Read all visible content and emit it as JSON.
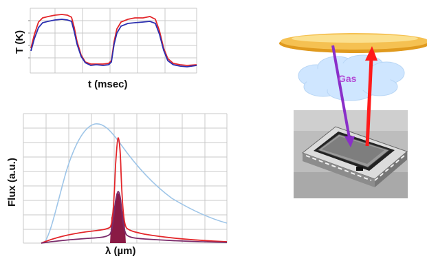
{
  "top_chart": {
    "ylabel": "T (K)",
    "xlabel": "t (msec)"
  },
  "bottom_chart": {
    "ylabel": "Flux (a.u.)",
    "xlabel": "λ (µm)"
  },
  "diagram": {
    "gas_label": "Gas"
  },
  "colors": {
    "red": "#e3262a",
    "blue": "#2b2fb0",
    "light_blue": "#9ec5e8",
    "maroon": "#8a1a45",
    "purple_arrow": "#8a2fc9",
    "red_arrow": "#ff1a1a",
    "disc": "#f2b43c",
    "cloud": "#cfe6ff"
  },
  "chart_data": [
    {
      "type": "line",
      "title": "",
      "xlabel": "t (msec)",
      "ylabel": "T (K)",
      "grid": true,
      "series": [
        {
          "color": "#e3262a",
          "x": [
            0,
            0.5,
            1.0,
            1.4,
            1.9,
            2.2,
            2.7,
            3.0,
            3.2,
            3.7,
            4.1,
            4.5,
            5.0,
            5.5,
            6.0,
            6.6,
            7.0
          ],
          "y": [
            0.35,
            0.9,
            1.0,
            1.0,
            0.98,
            0.6,
            0.1,
            0.0,
            0.0,
            0.05,
            0.75,
            0.95,
            1.0,
            1.0,
            0.55,
            0.05,
            0.0
          ]
        },
        {
          "color": "#2b2fb0",
          "x": [
            0,
            0.5,
            1.0,
            1.4,
            1.9,
            2.2,
            2.7,
            3.0,
            3.2,
            3.7,
            4.1,
            4.5,
            5.0,
            5.5,
            6.0,
            6.6,
            7.0
          ],
          "y": [
            0.3,
            0.82,
            0.9,
            0.92,
            0.9,
            0.55,
            0.1,
            0.0,
            0.0,
            0.05,
            0.68,
            0.86,
            0.9,
            0.9,
            0.5,
            0.05,
            0.02
          ]
        }
      ]
    },
    {
      "type": "line",
      "title": "",
      "xlabel": "λ (µm)",
      "ylabel": "Flux (a.u.)",
      "grid": true,
      "series": [
        {
          "color": "#9ec5e8",
          "x": [
            0,
            0.1,
            0.2,
            0.3,
            0.35,
            0.4,
            0.5,
            0.6,
            0.7,
            0.8,
            0.9,
            1.0
          ],
          "y": [
            0,
            0.02,
            0.55,
            0.92,
            1.0,
            0.98,
            0.82,
            0.6,
            0.45,
            0.32,
            0.24,
            0.17
          ]
        },
        {
          "color": "#e3262a",
          "x": [
            0,
            0.1,
            0.2,
            0.3,
            0.4,
            0.43,
            0.46,
            0.48,
            0.5,
            0.52,
            0.6,
            0.7,
            0.8,
            0.9,
            1.0
          ],
          "y": [
            0,
            0.05,
            0.1,
            0.12,
            0.13,
            0.2,
            0.6,
            0.94,
            0.6,
            0.12,
            0.1,
            0.08,
            0.05,
            0.04,
            0.03
          ]
        },
        {
          "color": "#8a1a45",
          "x": [
            0,
            0.1,
            0.2,
            0.3,
            0.4,
            0.43,
            0.46,
            0.48,
            0.5,
            0.52,
            0.6,
            0.7,
            0.8,
            0.9,
            1.0
          ],
          "y": [
            0,
            0.02,
            0.04,
            0.05,
            0.06,
            0.1,
            0.3,
            0.42,
            0.3,
            0.05,
            0.04,
            0.03,
            0.02,
            0.015,
            0.01
          ]
        }
      ]
    }
  ]
}
